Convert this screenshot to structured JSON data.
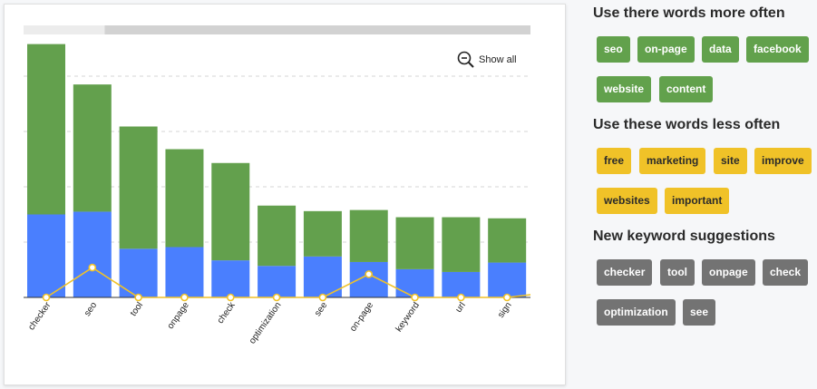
{
  "colors": {
    "green_segment": "#63a04d",
    "blue_segment": "#4a7ffe",
    "line": "#f0c228",
    "chip_green": "#62a14c",
    "chip_yellow": "#f0c228",
    "chip_gray": "#737373"
  },
  "chart_controls": {
    "show_all_label": "Show all",
    "show_all_icon": "zoom-out-icon",
    "scrollbar_position": 0.16
  },
  "chart_data": {
    "type": "bar",
    "stacked": true,
    "categories": [
      "checker",
      "seo",
      "tool",
      "onpage",
      "check",
      "optimization",
      "see",
      "on-page",
      "keyword",
      "url",
      "sign"
    ],
    "series": [
      {
        "values": [
          15,
          15.5,
          8.8,
          9.1,
          6.7,
          5.7,
          7.4,
          6.4,
          5.1,
          4.6,
          6.3
        ]
      },
      {
        "values": [
          30.8,
          23,
          22.1,
          17.7,
          17.6,
          10.9,
          8.2,
          9.4,
          9.4,
          9.9,
          8
        ]
      }
    ],
    "line_series": {
      "values": [
        0,
        5.4,
        0,
        0,
        0,
        0,
        0,
        4.2,
        0,
        0,
        0
      ]
    },
    "ylim": [
      0,
      50
    ],
    "grid": true,
    "legend": "none",
    "xlabel": "",
    "ylabel": ""
  },
  "sections": [
    {
      "title": "Use there words more often",
      "style": "green",
      "rows": [
        [
          "seo",
          "on-page",
          "data",
          "facebook"
        ],
        [
          "website",
          "content"
        ]
      ]
    },
    {
      "title": "Use these words less often",
      "style": "yellow",
      "rows": [
        [
          "free",
          "marketing",
          "site",
          "improve"
        ],
        [
          "websites",
          "important"
        ]
      ]
    },
    {
      "title": "New keyword suggestions",
      "style": "gray",
      "rows": [
        [
          "checker",
          "tool",
          "onpage",
          "check"
        ],
        [
          "optimization",
          "see"
        ]
      ]
    }
  ]
}
